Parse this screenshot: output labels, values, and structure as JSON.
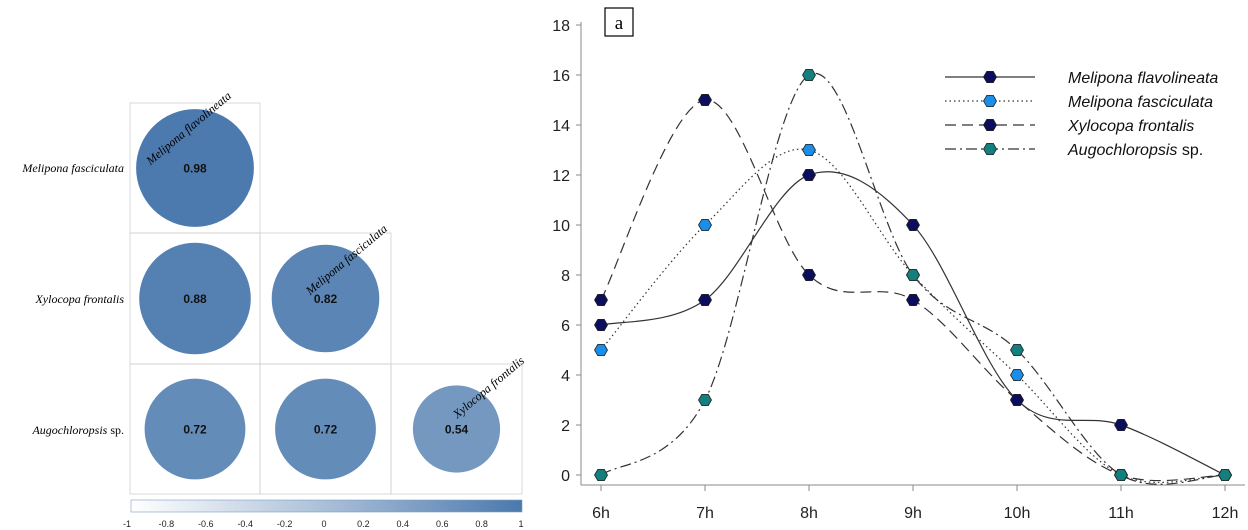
{
  "chart_data": [
    {
      "type": "heatmap",
      "species": [
        "Melipona flavolineata",
        "Melipona fasciculata",
        "Xylocopa frontalis",
        "Augochloropsis sp."
      ],
      "column_labels": [
        "Melipona flavolineata",
        "Melipona fasciculata",
        "Xylocopa frontalis"
      ],
      "row_labels": [
        {
          "italic": "Melipona fasciculata",
          "suffix": ""
        },
        {
          "italic": "Xylocopa frontalis",
          "suffix": ""
        },
        {
          "italic": "Augochloropsis",
          "suffix": " sp."
        }
      ],
      "cells": [
        {
          "row": 0,
          "col": 0,
          "value": 0.98,
          "label": "0.98"
        },
        {
          "row": 1,
          "col": 0,
          "value": 0.88,
          "label": "0.88"
        },
        {
          "row": 1,
          "col": 1,
          "value": 0.82,
          "label": "0.82"
        },
        {
          "row": 2,
          "col": 0,
          "value": 0.72,
          "label": "0.72"
        },
        {
          "row": 2,
          "col": 1,
          "value": 0.72,
          "label": "0.72"
        },
        {
          "row": 2,
          "col": 2,
          "value": 0.54,
          "label": "0.54"
        }
      ],
      "colorbar": {
        "range": [
          -1,
          1
        ],
        "ticks": [
          "-1",
          "-0.8",
          "-0.6",
          "-0.4",
          "-0.2",
          "0",
          "0.2",
          "0.4",
          "0.6",
          "0.8",
          "1"
        ],
        "low_color": "#ffffff",
        "high_color": "#4a79ad"
      }
    },
    {
      "type": "line",
      "panel_label": "a",
      "categories": [
        "6h",
        "7h",
        "8h",
        "9h",
        "10h",
        "11h",
        "12h"
      ],
      "ylim": [
        0,
        18
      ],
      "yticks": [
        "0",
        "2",
        "4",
        "6",
        "8",
        "10",
        "12",
        "14",
        "16",
        "18"
      ],
      "series": [
        {
          "name": "Melipona flavolineata",
          "suffix": "",
          "values": [
            6,
            7,
            12,
            10,
            3,
            2,
            0
          ],
          "marker_color": "#0d0d5e",
          "dash": ""
        },
        {
          "name": "Melipona fasciculata",
          "suffix": "",
          "values": [
            5,
            10,
            13,
            8,
            4,
            0,
            0
          ],
          "marker_color": "#1a8ee8",
          "dash": "1.5,3"
        },
        {
          "name": "Xylocopa frontalis",
          "suffix": "",
          "values": [
            7,
            15,
            8,
            7,
            3,
            0,
            0
          ],
          "marker_color": "#0d0d5e",
          "dash": "11,6"
        },
        {
          "name": "Augochloropsis",
          "suffix": " sp.",
          "values": [
            0,
            3,
            16,
            8,
            5,
            0,
            0
          ],
          "marker_color": "#13807e",
          "dash": "11,4,2,4"
        }
      ]
    }
  ]
}
